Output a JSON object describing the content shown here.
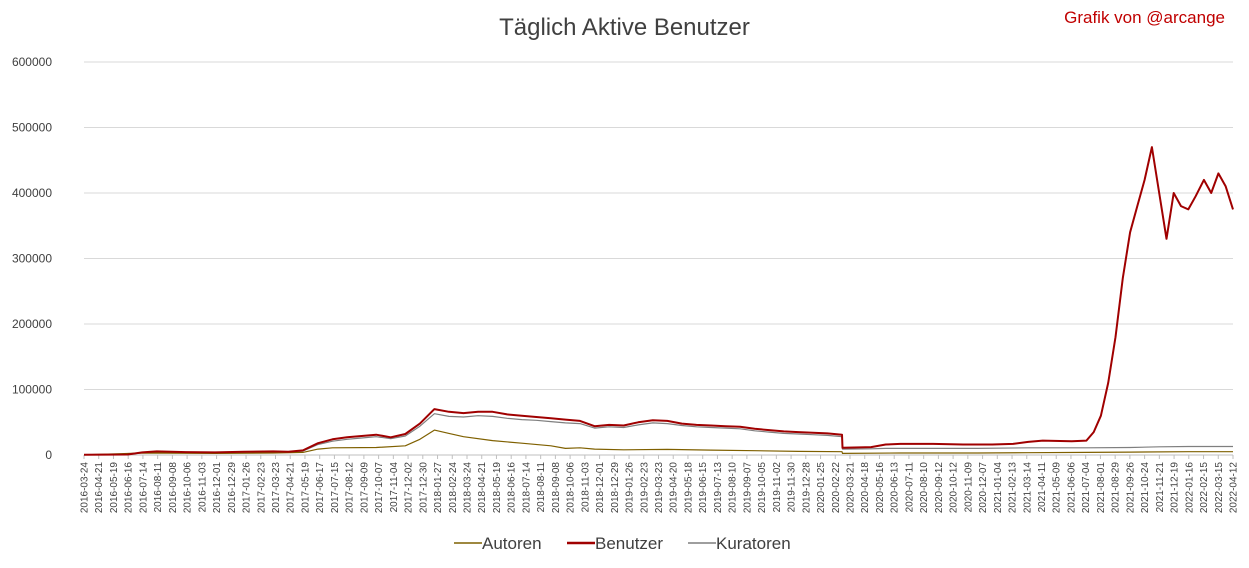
{
  "header": {
    "title": "Täglich Aktive Benutzer",
    "credit": "Grafik von @arcange"
  },
  "chart_data": {
    "type": "line",
    "title": "Täglich Aktive Benutzer",
    "xlabel": "",
    "ylabel": "",
    "ylim": [
      0,
      600000
    ],
    "yticks": [
      "0",
      "100000",
      "200000",
      "300000",
      "400000",
      "500000",
      "600000"
    ],
    "x_tick_labels": [
      "2016-03-24",
      "2016-04-21",
      "2016-05-19",
      "2016-06-16",
      "2016-07-14",
      "2016-08-11",
      "2016-09-08",
      "2016-10-06",
      "2016-11-03",
      "2016-12-01",
      "2016-12-29",
      "2017-01-26",
      "2017-02-23",
      "2017-03-23",
      "2017-04-21",
      "2017-05-19",
      "2017-06-17",
      "2017-07-15",
      "2017-08-12",
      "2017-09-09",
      "2017-10-07",
      "2017-11-04",
      "2017-12-02",
      "2017-12-30",
      "2018-01-27",
      "2018-02-24",
      "2018-03-24",
      "2018-04-21",
      "2018-05-19",
      "2018-06-16",
      "2018-07-14",
      "2018-08-11",
      "2018-09-08",
      "2018-10-06",
      "2018-11-03",
      "2018-12-01",
      "2018-12-29",
      "2019-01-26",
      "2019-02-23",
      "2019-03-23",
      "2019-04-20",
      "2019-05-18",
      "2019-06-15",
      "2019-07-13",
      "2019-08-10",
      "2019-09-07",
      "2019-10-05",
      "2019-11-02",
      "2019-11-30",
      "2019-12-28",
      "2020-01-25",
      "2020-02-22",
      "2020-03-21",
      "2020-04-18",
      "2020-05-16",
      "2020-06-13",
      "2020-07-11",
      "2020-08-10",
      "2020-09-12",
      "2020-10-12",
      "2020-11-09",
      "2020-12-07",
      "2021-01-04",
      "2021-02-13",
      "2021-03-14",
      "2021-04-11",
      "2021-05-09",
      "2021-06-06",
      "2021-07-04",
      "2021-08-01",
      "2021-08-29",
      "2021-09-26",
      "2021-10-24",
      "2021-11-21",
      "2021-12-19",
      "2022-01-16",
      "2022-02-15",
      "2022-03-15",
      "2022-04-12"
    ],
    "grid": true,
    "legend_position": "bottom",
    "series": [
      {
        "name": "Autoren",
        "color": "#7f6000",
        "points": [
          [
            "2016-03-24",
            100
          ],
          [
            "2016-07-14",
            3000
          ],
          [
            "2016-12-01",
            2500
          ],
          [
            "2017-03-23",
            3000
          ],
          [
            "2017-05-19",
            4000
          ],
          [
            "2017-06-17",
            9000
          ],
          [
            "2017-07-15",
            11000
          ],
          [
            "2017-10-07",
            11500
          ],
          [
            "2017-12-02",
            14000
          ],
          [
            "2017-12-30",
            24000
          ],
          [
            "2018-01-27",
            38000
          ],
          [
            "2018-02-24",
            33000
          ],
          [
            "2018-03-24",
            28000
          ],
          [
            "2018-05-19",
            22000
          ],
          [
            "2018-07-14",
            18000
          ],
          [
            "2018-09-08",
            14000
          ],
          [
            "2018-10-06",
            10000
          ],
          [
            "2018-11-03",
            11000
          ],
          [
            "2018-12-01",
            9000
          ],
          [
            "2019-01-26",
            8000
          ],
          [
            "2019-04-20",
            8500
          ],
          [
            "2019-07-13",
            7500
          ],
          [
            "2019-10-05",
            6500
          ],
          [
            "2019-12-28",
            5500
          ],
          [
            "2020-03-21",
            5000
          ],
          [
            "2020-03-22",
            2500
          ],
          [
            "2020-07-11",
            3000
          ],
          [
            "2020-12-07",
            3000
          ],
          [
            "2021-03-14",
            3500
          ],
          [
            "2021-07-04",
            4000
          ],
          [
            "2021-09-26",
            4500
          ],
          [
            "2022-01-16",
            5000
          ],
          [
            "2022-04-12",
            5000
          ]
        ]
      },
      {
        "name": "Benutzer",
        "color": "#a00000",
        "points": [
          [
            "2016-03-24",
            300
          ],
          [
            "2016-06-16",
            800
          ],
          [
            "2016-07-14",
            4000
          ],
          [
            "2016-08-11",
            5500
          ],
          [
            "2016-10-06",
            4500
          ],
          [
            "2016-12-01",
            4000
          ],
          [
            "2017-01-26",
            5000
          ],
          [
            "2017-03-23",
            5500
          ],
          [
            "2017-04-21",
            5000
          ],
          [
            "2017-05-19",
            7000
          ],
          [
            "2017-06-17",
            18000
          ],
          [
            "2017-07-15",
            24000
          ],
          [
            "2017-08-12",
            27000
          ],
          [
            "2017-09-09",
            29000
          ],
          [
            "2017-10-07",
            31000
          ],
          [
            "2017-11-04",
            27000
          ],
          [
            "2017-12-02",
            32000
          ],
          [
            "2017-12-30",
            48000
          ],
          [
            "2018-01-27",
            70000
          ],
          [
            "2018-02-24",
            66000
          ],
          [
            "2018-03-24",
            64000
          ],
          [
            "2018-04-21",
            66000
          ],
          [
            "2018-05-19",
            66000
          ],
          [
            "2018-06-16",
            62000
          ],
          [
            "2018-07-14",
            60000
          ],
          [
            "2018-08-11",
            58000
          ],
          [
            "2018-09-08",
            56000
          ],
          [
            "2018-10-06",
            54000
          ],
          [
            "2018-11-03",
            52000
          ],
          [
            "2018-12-01",
            44000
          ],
          [
            "2018-12-29",
            46000
          ],
          [
            "2019-01-26",
            45000
          ],
          [
            "2019-02-23",
            50000
          ],
          [
            "2019-03-23",
            53000
          ],
          [
            "2019-04-20",
            52000
          ],
          [
            "2019-05-18",
            48000
          ],
          [
            "2019-06-15",
            46000
          ],
          [
            "2019-07-13",
            45000
          ],
          [
            "2019-08-10",
            44000
          ],
          [
            "2019-09-07",
            43000
          ],
          [
            "2019-10-05",
            40000
          ],
          [
            "2019-11-02",
            38000
          ],
          [
            "2019-11-30",
            36000
          ],
          [
            "2019-12-28",
            35000
          ],
          [
            "2020-01-25",
            34000
          ],
          [
            "2020-02-22",
            33000
          ],
          [
            "2020-03-21",
            31000
          ],
          [
            "2020-03-22",
            11000
          ],
          [
            "2020-05-16",
            12000
          ],
          [
            "2020-06-13",
            16000
          ],
          [
            "2020-07-11",
            17000
          ],
          [
            "2020-09-12",
            17000
          ],
          [
            "2020-11-09",
            16000
          ],
          [
            "2021-01-04",
            16000
          ],
          [
            "2021-02-13",
            17000
          ],
          [
            "2021-03-14",
            20000
          ],
          [
            "2021-04-11",
            22000
          ],
          [
            "2021-06-06",
            21000
          ],
          [
            "2021-07-04",
            22000
          ],
          [
            "2021-07-18",
            35000
          ],
          [
            "2021-08-01",
            60000
          ],
          [
            "2021-08-15",
            110000
          ],
          [
            "2021-08-29",
            180000
          ],
          [
            "2021-09-12",
            270000
          ],
          [
            "2021-09-26",
            340000
          ],
          [
            "2021-10-10",
            380000
          ],
          [
            "2021-10-24",
            420000
          ],
          [
            "2021-11-07",
            470000
          ],
          [
            "2021-11-21",
            400000
          ],
          [
            "2021-12-05",
            330000
          ],
          [
            "2021-12-19",
            400000
          ],
          [
            "2022-01-02",
            380000
          ],
          [
            "2022-01-16",
            375000
          ],
          [
            "2022-01-30",
            395000
          ],
          [
            "2022-02-15",
            420000
          ],
          [
            "2022-03-01",
            400000
          ],
          [
            "2022-03-15",
            430000
          ],
          [
            "2022-03-29",
            410000
          ],
          [
            "2022-04-12",
            375000
          ]
        ]
      },
      {
        "name": "Kuratoren",
        "color": "#7f7f7f",
        "points": [
          [
            "2016-03-24",
            200
          ],
          [
            "2016-06-16",
            600
          ],
          [
            "2016-07-14",
            3500
          ],
          [
            "2016-08-11",
            5000
          ],
          [
            "2016-10-06",
            4000
          ],
          [
            "2016-12-01",
            3500
          ],
          [
            "2017-01-26",
            4500
          ],
          [
            "2017-03-23",
            5000
          ],
          [
            "2017-04-21",
            4500
          ],
          [
            "2017-05-19",
            6000
          ],
          [
            "2017-06-17",
            16000
          ],
          [
            "2017-07-15",
            21000
          ],
          [
            "2017-08-12",
            24000
          ],
          [
            "2017-09-09",
            26000
          ],
          [
            "2017-10-07",
            28000
          ],
          [
            "2017-11-04",
            25000
          ],
          [
            "2017-12-02",
            29000
          ],
          [
            "2017-12-30",
            44000
          ],
          [
            "2018-01-27",
            63000
          ],
          [
            "2018-02-24",
            59000
          ],
          [
            "2018-03-24",
            58000
          ],
          [
            "2018-04-21",
            60000
          ],
          [
            "2018-05-19",
            59000
          ],
          [
            "2018-06-16",
            56000
          ],
          [
            "2018-07-14",
            54000
          ],
          [
            "2018-08-11",
            53000
          ],
          [
            "2018-09-08",
            51000
          ],
          [
            "2018-10-06",
            49000
          ],
          [
            "2018-11-03",
            48000
          ],
          [
            "2018-12-01",
            41000
          ],
          [
            "2018-12-29",
            43000
          ],
          [
            "2019-01-26",
            42000
          ],
          [
            "2019-02-23",
            46000
          ],
          [
            "2019-03-23",
            49000
          ],
          [
            "2019-04-20",
            48000
          ],
          [
            "2019-05-18",
            45000
          ],
          [
            "2019-06-15",
            43000
          ],
          [
            "2019-07-13",
            42000
          ],
          [
            "2019-08-10",
            41000
          ],
          [
            "2019-09-07",
            40000
          ],
          [
            "2019-10-05",
            37000
          ],
          [
            "2019-11-02",
            35000
          ],
          [
            "2019-11-30",
            33000
          ],
          [
            "2019-12-28",
            32000
          ],
          [
            "2020-01-25",
            31000
          ],
          [
            "2020-02-22",
            30000
          ],
          [
            "2020-03-21",
            28000
          ],
          [
            "2020-03-22",
            9000
          ],
          [
            "2020-05-16",
            9500
          ],
          [
            "2020-06-13",
            10000
          ],
          [
            "2020-09-12",
            10000
          ],
          [
            "2020-12-07",
            10000
          ],
          [
            "2021-03-14",
            11000
          ],
          [
            "2021-07-04",
            11000
          ],
          [
            "2021-09-26",
            11500
          ],
          [
            "2021-11-21",
            12500
          ],
          [
            "2022-01-16",
            13000
          ],
          [
            "2022-04-12",
            13000
          ]
        ]
      }
    ]
  }
}
